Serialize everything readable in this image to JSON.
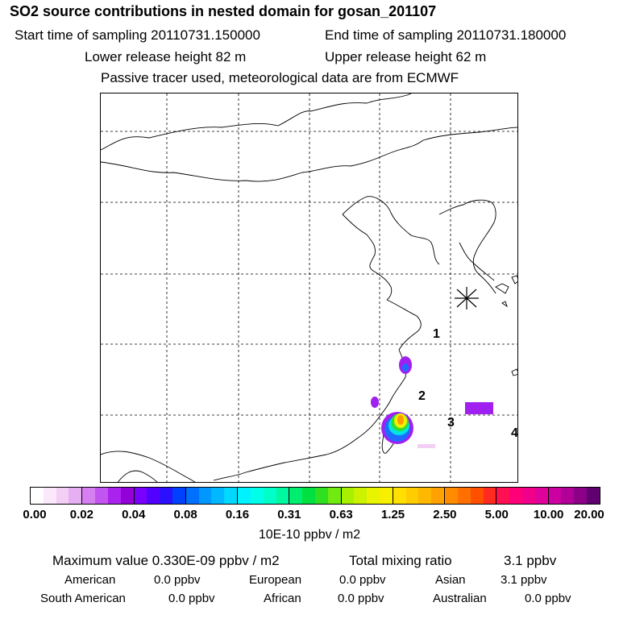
{
  "header": {
    "title": "SO2 source contributions in nested domain for gosan_201107",
    "start_time": "Start time of sampling 20110731.150000",
    "end_time": "End time of sampling 20110731.180000",
    "lower_release": "Lower release height   82 m",
    "upper_release": "Upper release height   62 m",
    "note": "Passive tracer used, meteorological data are from ECMWF"
  },
  "map": {
    "markers": [
      "1",
      "2",
      "3",
      "4"
    ],
    "colors": {
      "coast": "#000000",
      "grid": "#000000",
      "plume_violet": "#a020f0",
      "plume_blue": "#1e6cff",
      "plume_cyan": "#00e5e5",
      "plume_green": "#30e030",
      "plume_yellow": "#f0f000",
      "plume_orange": "#ff9900"
    }
  },
  "colorbar": {
    "tick_labels": [
      "0.00",
      "0.02",
      "0.04",
      "0.08",
      "0.16",
      "0.31",
      "0.63",
      "1.25",
      "2.50",
      "5.00",
      "10.00",
      "20.00"
    ],
    "segments": [
      [
        "#ffffff",
        "#fbe9fb",
        "#f3cff6",
        "#e6aff2"
      ],
      [
        "#d67ff0",
        "#c254ef",
        "#aa22ee",
        "#9400d8"
      ],
      [
        "#7a00ff",
        "#5200ff",
        "#2a10ff",
        "#0040ff"
      ],
      [
        "#0070ff",
        "#0098ff",
        "#00b8ff",
        "#00d8ff"
      ],
      [
        "#00f2ff",
        "#00ffe8",
        "#00ffc8",
        "#00f8a0"
      ],
      [
        "#00ee70",
        "#00e040",
        "#30e020",
        "#70ea10"
      ],
      [
        "#a8f000",
        "#ccf200",
        "#e8f400",
        "#f8f000"
      ],
      [
        "#ffe000",
        "#ffcc00",
        "#ffb800",
        "#ffa200"
      ],
      [
        "#ff8c00",
        "#ff7000",
        "#ff5000",
        "#ff2a20"
      ],
      [
        "#ff1050",
        "#ff0078",
        "#f0008a",
        "#e0009a"
      ],
      [
        "#cc00a0",
        "#b00098",
        "#8c0088",
        "#600070"
      ]
    ],
    "units": "10E-10 ppbv / m2"
  },
  "summary": {
    "max_label": "Maximum value  0.330E-09 ppbv / m2",
    "total_label": "Total mixing ratio",
    "total_value": "3.1 ppbv",
    "regions": [
      {
        "name": "American",
        "value": "0.0 ppbv"
      },
      {
        "name": "European",
        "value": "0.0 ppbv"
      },
      {
        "name": "Asian",
        "value": "3.1 ppbv"
      },
      {
        "name": "South American",
        "value": "0.0 ppbv"
      },
      {
        "name": "African",
        "value": "0.0 ppbv"
      },
      {
        "name": "Australian",
        "value": "0.0 ppbv"
      }
    ]
  }
}
